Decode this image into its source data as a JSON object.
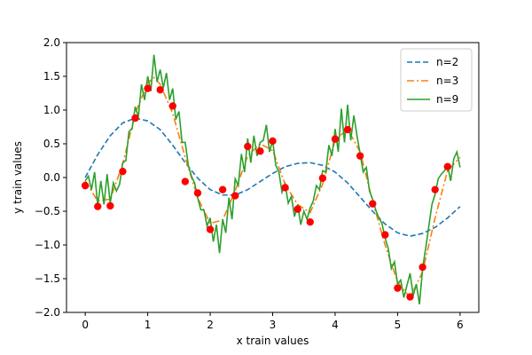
{
  "chart_data": {
    "type": "line",
    "title": "",
    "xlabel": "x train values",
    "ylabel": "y train values",
    "xlim": [
      -0.3,
      6.3
    ],
    "ylim": [
      -2.0,
      2.0
    ],
    "x_ticks": [
      0,
      1,
      2,
      3,
      4,
      5,
      6
    ],
    "x_tick_labels": [
      "0",
      "1",
      "2",
      "3",
      "4",
      "5",
      "6"
    ],
    "y_ticks": [
      -2.0,
      -1.5,
      -1.0,
      -0.5,
      0.0,
      0.5,
      1.0,
      1.5,
      2.0
    ],
    "y_tick_labels": [
      "−2.0",
      "−1.5",
      "−1.0",
      "−0.5",
      "0.0",
      "0.5",
      "1.0",
      "1.5",
      "2.0"
    ],
    "grid": false,
    "legend_position": "top-right",
    "scatter": {
      "name": "",
      "color": "#ff0000",
      "x": [
        0.0,
        0.2,
        0.4,
        0.6,
        0.8,
        1.0,
        1.2,
        1.4,
        1.6,
        1.8,
        2.0,
        2.2,
        2.4,
        2.6,
        2.8,
        3.0,
        3.2,
        3.4,
        3.6,
        3.8,
        4.0,
        4.2,
        4.4,
        4.6,
        4.8,
        5.0,
        5.2,
        5.4,
        5.6,
        5.8
      ],
      "y": [
        -0.12,
        -0.43,
        -0.42,
        0.09,
        0.88,
        1.32,
        1.3,
        1.06,
        -0.06,
        -0.23,
        -0.77,
        -0.18,
        -0.27,
        0.46,
        0.39,
        0.54,
        -0.15,
        -0.47,
        -0.66,
        -0.01,
        0.57,
        0.71,
        0.32,
        -0.39,
        -0.85,
        -1.64,
        -1.77,
        -1.33,
        -0.18,
        0.16
      ]
    },
    "series": [
      {
        "name": "n=2",
        "color": "#1f77b4",
        "dash": "dashed",
        "x": [
          0.0,
          0.2,
          0.4,
          0.6,
          0.8,
          1.0,
          1.2,
          1.4,
          1.6,
          1.8,
          2.0,
          2.2,
          2.4,
          2.6,
          2.8,
          3.0,
          3.2,
          3.4,
          3.6,
          3.8,
          4.0,
          4.2,
          4.4,
          4.6,
          4.8,
          5.0,
          5.2,
          5.4,
          5.6,
          5.8,
          6.0
        ],
        "y": [
          0.0,
          0.34,
          0.62,
          0.81,
          0.88,
          0.84,
          0.71,
          0.48,
          0.22,
          -0.01,
          -0.18,
          -0.26,
          -0.26,
          -0.18,
          -0.06,
          0.06,
          0.16,
          0.21,
          0.22,
          0.18,
          0.08,
          -0.08,
          -0.29,
          -0.5,
          -0.69,
          -0.82,
          -0.87,
          -0.83,
          -0.74,
          -0.6,
          -0.43
        ]
      },
      {
        "name": "n=3",
        "color": "#ff7f0e",
        "dash": "dashdot",
        "x": [
          0.0,
          0.2,
          0.4,
          0.6,
          0.8,
          1.0,
          1.1,
          1.2,
          1.4,
          1.6,
          1.8,
          2.0,
          2.2,
          2.4,
          2.6,
          2.8,
          3.0,
          3.2,
          3.4,
          3.6,
          3.8,
          4.0,
          4.2,
          4.4,
          4.6,
          4.8,
          5.0,
          5.2,
          5.4,
          5.6,
          5.8,
          6.0
        ],
        "y": [
          -0.05,
          -0.35,
          -0.32,
          0.2,
          0.95,
          1.4,
          1.48,
          1.38,
          0.95,
          0.3,
          -0.3,
          -0.68,
          -0.63,
          -0.2,
          0.32,
          0.5,
          0.4,
          -0.1,
          -0.4,
          -0.52,
          -0.1,
          0.55,
          0.72,
          0.38,
          -0.35,
          -1.0,
          -1.55,
          -1.78,
          -1.4,
          -0.6,
          0.1,
          0.3
        ]
      },
      {
        "name": "n=9",
        "color": "#2ca02c",
        "dash": "solid",
        "x": [
          0.0,
          0.05,
          0.1,
          0.15,
          0.2,
          0.25,
          0.3,
          0.35,
          0.4,
          0.45,
          0.5,
          0.55,
          0.6,
          0.65,
          0.7,
          0.75,
          0.8,
          0.85,
          0.9,
          0.95,
          1.0,
          1.05,
          1.1,
          1.15,
          1.2,
          1.25,
          1.3,
          1.35,
          1.4,
          1.45,
          1.5,
          1.55,
          1.6,
          1.65,
          1.7,
          1.75,
          1.8,
          1.85,
          1.9,
          1.95,
          2.0,
          2.05,
          2.1,
          2.15,
          2.2,
          2.25,
          2.3,
          2.35,
          2.4,
          2.45,
          2.5,
          2.55,
          2.6,
          2.65,
          2.7,
          2.75,
          2.8,
          2.85,
          2.9,
          2.95,
          3.0,
          3.05,
          3.1,
          3.15,
          3.2,
          3.25,
          3.3,
          3.35,
          3.4,
          3.45,
          3.5,
          3.55,
          3.6,
          3.65,
          3.7,
          3.75,
          3.8,
          3.85,
          3.9,
          3.95,
          4.0,
          4.05,
          4.1,
          4.15,
          4.2,
          4.25,
          4.3,
          4.35,
          4.4,
          4.45,
          4.5,
          4.55,
          4.6,
          4.65,
          4.7,
          4.75,
          4.8,
          4.85,
          4.9,
          4.95,
          5.0,
          5.05,
          5.1,
          5.15,
          5.2,
          5.25,
          5.3,
          5.35,
          5.4,
          5.45,
          5.5,
          5.55,
          5.6,
          5.65,
          5.7,
          5.75,
          5.8,
          5.85,
          5.9,
          5.95,
          6.0
        ],
        "y": [
          -0.05,
          0.02,
          -0.18,
          0.08,
          -0.42,
          -0.05,
          -0.4,
          0.05,
          -0.38,
          -0.08,
          -0.2,
          -0.1,
          0.22,
          0.25,
          0.68,
          0.72,
          1.05,
          0.9,
          1.38,
          1.15,
          1.5,
          1.28,
          1.82,
          1.42,
          1.6,
          1.33,
          1.55,
          1.15,
          1.32,
          0.86,
          0.98,
          0.52,
          0.52,
          0.18,
          0.02,
          -0.08,
          -0.3,
          -0.48,
          -0.48,
          -0.72,
          -0.6,
          -0.95,
          -0.7,
          -1.12,
          -0.62,
          -0.82,
          -0.3,
          -0.62,
          -0.02,
          -0.12,
          0.35,
          0.08,
          0.58,
          0.22,
          0.62,
          0.32,
          0.52,
          0.55,
          0.78,
          0.38,
          0.55,
          0.18,
          0.08,
          -0.22,
          -0.1,
          -0.38,
          -0.28,
          -0.58,
          -0.4,
          -0.7,
          -0.5,
          -0.62,
          -0.45,
          -0.35,
          -0.12,
          -0.18,
          0.1,
          0.08,
          0.48,
          0.32,
          0.72,
          0.38,
          1.02,
          0.52,
          1.08,
          0.55,
          0.92,
          0.62,
          0.35,
          0.08,
          0.15,
          -0.2,
          -0.32,
          -0.48,
          -0.6,
          -0.68,
          -0.9,
          -1.05,
          -1.35,
          -1.25,
          -1.58,
          -1.52,
          -1.78,
          -1.6,
          -1.42,
          -1.75,
          -1.58,
          -1.88,
          -1.35,
          -1.05,
          -0.72,
          -0.4,
          -0.25,
          -0.02,
          0.05,
          0.1,
          0.18,
          -0.05,
          0.28,
          0.38,
          0.15
        ]
      }
    ]
  }
}
